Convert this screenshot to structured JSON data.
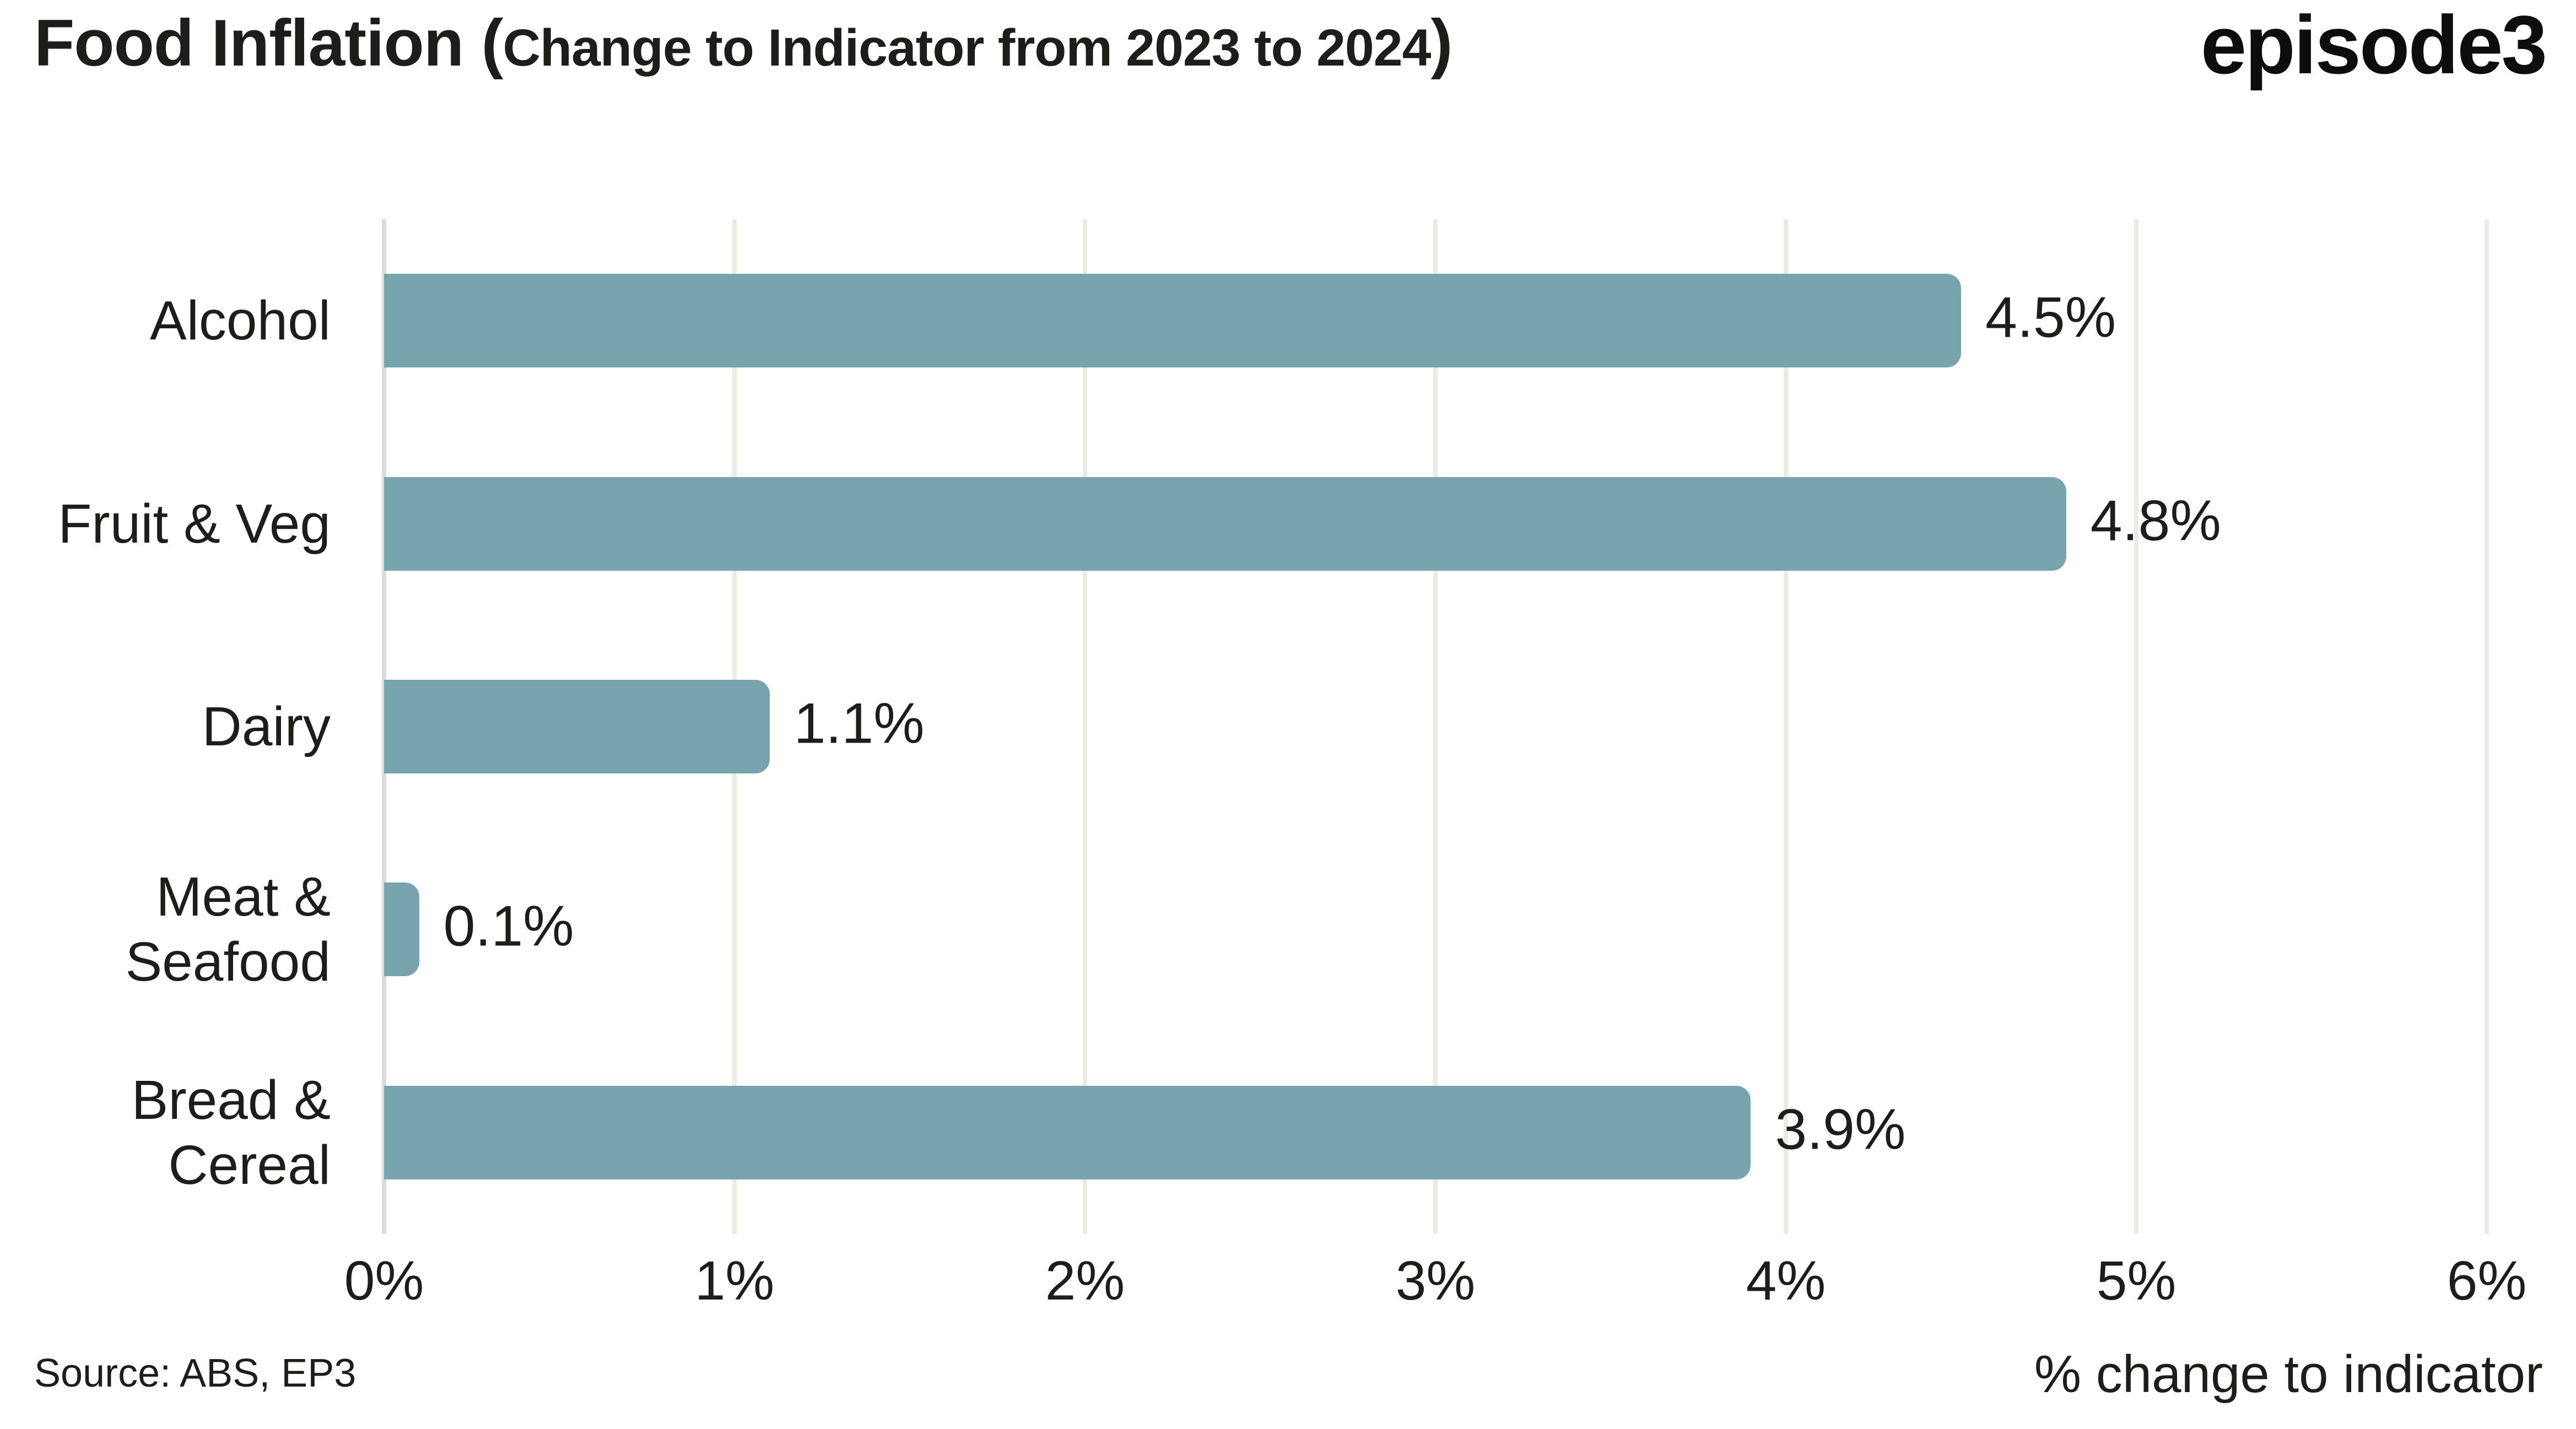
{
  "header": {
    "title_main": "Food Inflation (",
    "title_sub": "Change to Indicator from 2023 to 2024",
    "title_close": ")",
    "logo_text": "episode3"
  },
  "chart_data": {
    "type": "bar",
    "orientation": "horizontal",
    "title": "Food Inflation (Change to Indicator from 2023 to 2024)",
    "categories": [
      "Alcohol",
      "Fruit & Veg",
      "Dairy",
      "Meat & Seafood",
      "Bread & Cereal"
    ],
    "values": [
      4.5,
      4.8,
      1.1,
      0.1,
      3.9
    ],
    "value_labels": [
      "4.5%",
      "4.8%",
      "1.1%",
      "0.1%",
      "3.9%"
    ],
    "xlabel": "% change to indicator",
    "ylabel": "",
    "xlim": [
      0,
      6.2
    ],
    "x_tick_values": [
      0,
      1,
      2,
      3,
      4,
      5,
      6
    ],
    "x_tick_labels": [
      "0%",
      "1%",
      "2%",
      "3%",
      "4%",
      "5%",
      "6%"
    ],
    "grid": "vertical-only",
    "legend": "none",
    "colors": {
      "bar": "#77A4AD",
      "gridline": "#ECEBE2",
      "zero_axis_line": "#DBDBDB",
      "text": "#1d1d1b",
      "background": "#ffffff"
    }
  },
  "footer": {
    "source": "Source: ABS, EP3"
  }
}
